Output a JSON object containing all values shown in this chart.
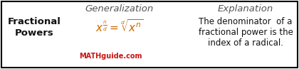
{
  "bg_color": "#ffffff",
  "border_color": "#000000",
  "title_generalization": "Generalization",
  "title_explanation": "Explanation",
  "label_fractional": "Fractional\nPowers",
  "formula_text": "$x^{\\frac{n}{d}} = \\sqrt[d]{x^n}$",
  "watermark": "MATHguide.com",
  "explanation_line1": "The denominator  of a",
  "explanation_line2": "fractional power is the",
  "explanation_line3": "index of a radical.",
  "title_color": "#555555",
  "label_color": "#111111",
  "formula_color": "#cc6600",
  "watermark_color": "#cc1111",
  "explanation_color": "#111111",
  "title_fontstyle": "italic",
  "title_fontsize": 9.5,
  "label_fontsize": 9.5,
  "formula_fontsize": 11,
  "watermark_fontsize": 7,
  "explanation_fontsize": 8.5,
  "fig_width": 4.2,
  "fig_height": 0.97,
  "dpi": 100
}
